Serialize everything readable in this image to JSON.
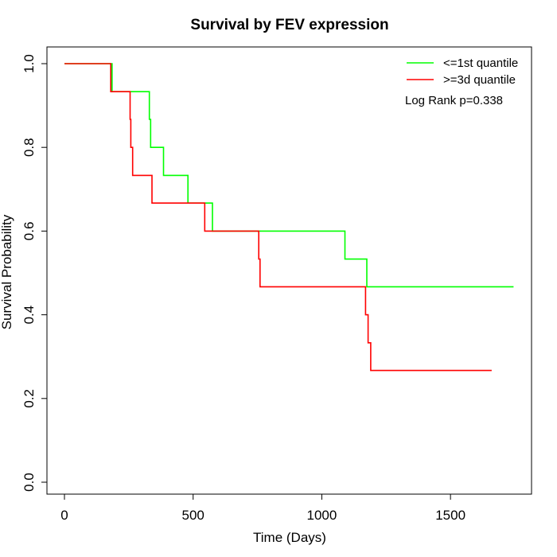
{
  "chart_data": {
    "type": "line",
    "step": true,
    "title": "Survival by FEV expression",
    "xlabel": "Time (Days)",
    "ylabel": "Survival Probability",
    "xlim": [
      0,
      1750
    ],
    "ylim": [
      0,
      1
    ],
    "x_ticks": [
      0,
      500,
      1000,
      1500
    ],
    "y_ticks": [
      0.0,
      0.2,
      0.4,
      0.6,
      0.8,
      1.0
    ],
    "x_tick_labels": [
      "0",
      "500",
      "1000",
      "1500"
    ],
    "y_tick_labels": [
      "0.0",
      "0.2",
      "0.4",
      "0.6",
      "0.8",
      "1.0"
    ],
    "grid": false,
    "legend_position": "top-right",
    "annotation": "Log Rank p=0.338",
    "series": [
      {
        "name": "<=1st quantile",
        "color": "#00ff00",
        "x": [
          0,
          185,
          330,
          335,
          385,
          480,
          575,
          1090,
          1175,
          1745
        ],
        "y": [
          1.0,
          0.933,
          0.867,
          0.8,
          0.733,
          0.667,
          0.6,
          0.533,
          0.467,
          0.467
        ]
      },
      {
        "name": ">=3d quantile",
        "color": "#ff0000",
        "x": [
          0,
          180,
          255,
          258,
          265,
          340,
          545,
          755,
          760,
          1170,
          1180,
          1190,
          1660
        ],
        "y": [
          1.0,
          0.933,
          0.867,
          0.8,
          0.733,
          0.667,
          0.6,
          0.533,
          0.467,
          0.4,
          0.333,
          0.267,
          0.267
        ]
      }
    ]
  }
}
